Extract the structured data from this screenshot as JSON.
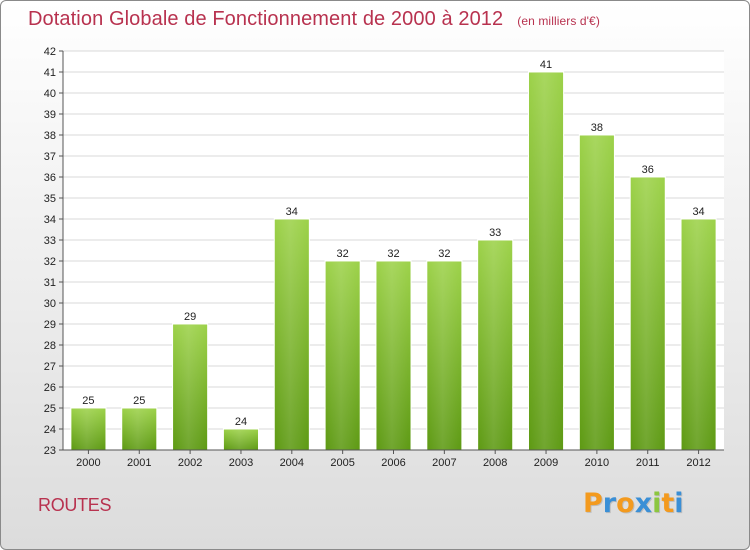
{
  "chart_data": {
    "type": "bar",
    "title": "Dotation Globale de Fonctionnement de 2000 à 2012",
    "subtitle": "(en milliers d'€)",
    "categories": [
      "2000",
      "2001",
      "2002",
      "2003",
      "2004",
      "2005",
      "2006",
      "2007",
      "2008",
      "2009",
      "2010",
      "2011",
      "2012"
    ],
    "values": [
      25,
      25,
      29,
      24,
      34,
      32,
      32,
      32,
      33,
      41,
      38,
      36,
      34
    ],
    "ylim": [
      23,
      42
    ],
    "yticks": [
      23,
      24,
      25,
      26,
      27,
      28,
      29,
      30,
      31,
      32,
      33,
      34,
      35,
      36,
      37,
      38,
      39,
      40,
      41,
      42
    ],
    "xlabel": "",
    "ylabel": "",
    "grid": true,
    "colors": {
      "bar_top": "#9dd24a",
      "bar_bottom": "#5e9a14",
      "title": "#b8324f"
    }
  },
  "footer": {
    "label": "ROUTES"
  },
  "brand": {
    "letters": [
      "P",
      "r",
      "o",
      "x",
      "i",
      "t",
      "i"
    ],
    "colors": [
      "#f39a1e",
      "#3a8fd6",
      "#f39a1e",
      "#3a8fd6",
      "#8cc63f",
      "#f39a1e",
      "#3a8fd6"
    ]
  }
}
